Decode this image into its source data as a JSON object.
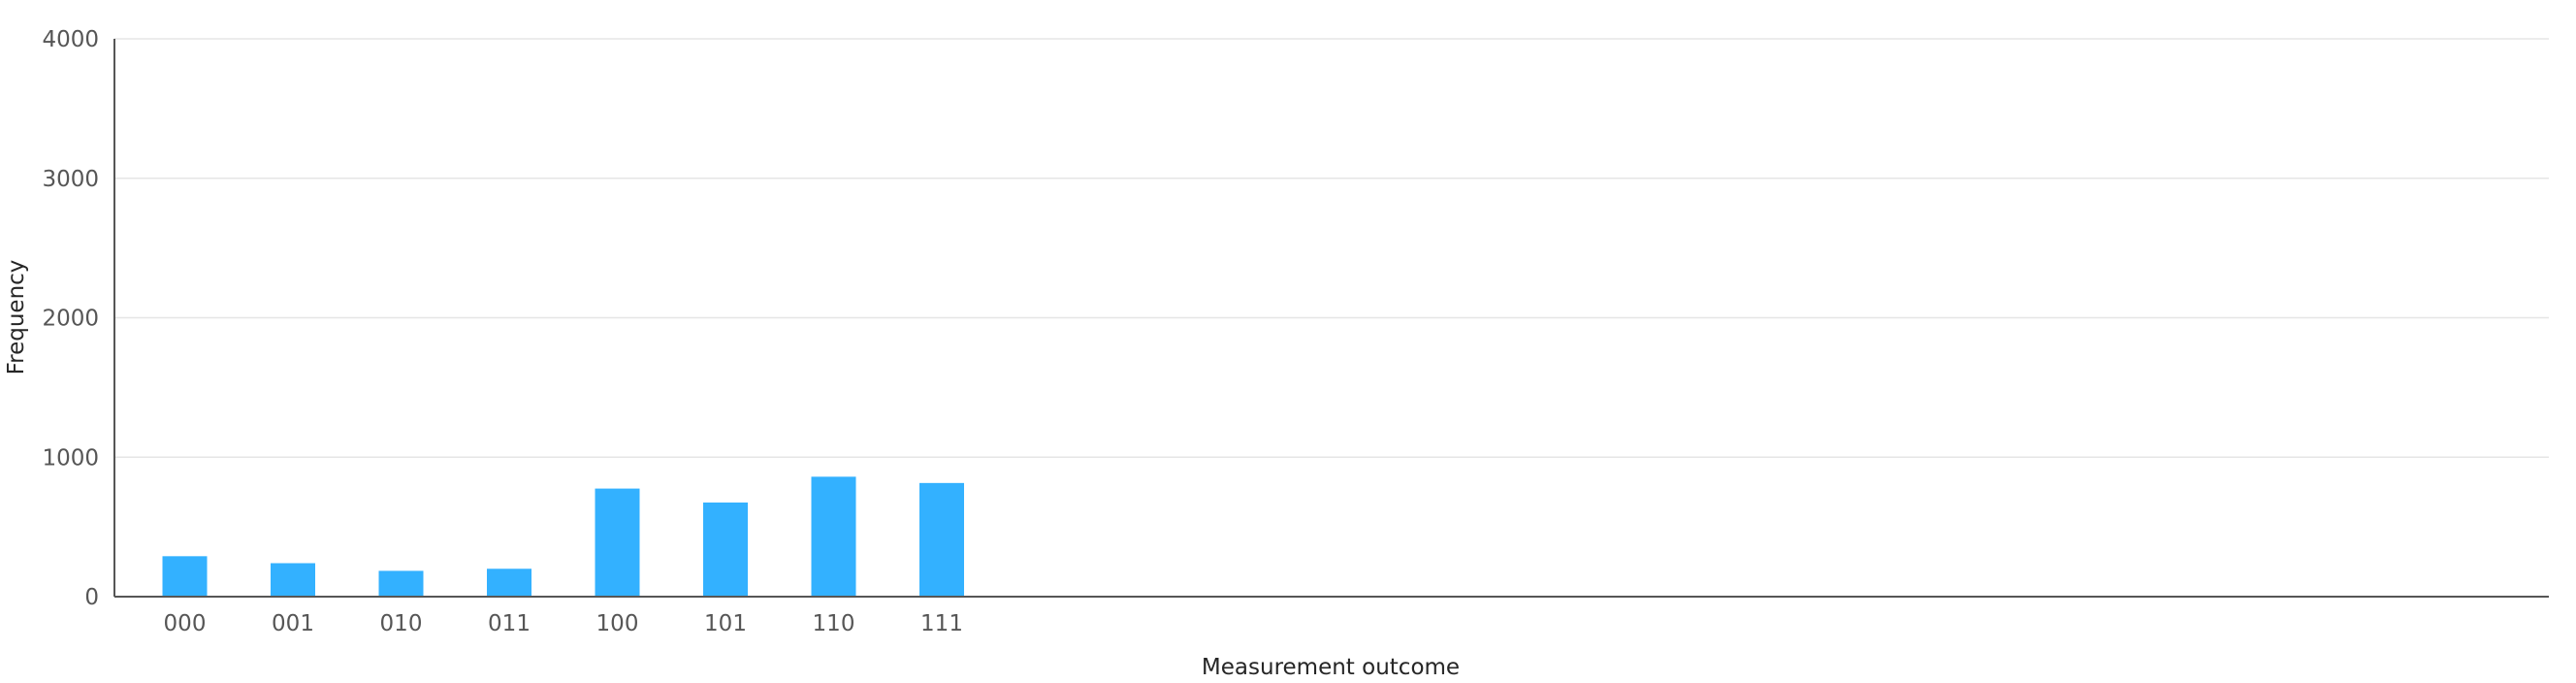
{
  "chart_data": {
    "type": "bar",
    "xlabel": "Measurement outcome",
    "ylabel": "Frequency",
    "categories": [
      "000",
      "001",
      "010",
      "011",
      "100",
      "101",
      "110",
      "111"
    ],
    "values": [
      290,
      240,
      185,
      200,
      775,
      675,
      860,
      815
    ],
    "ylim": [
      0,
      4000
    ],
    "yticks": [
      0,
      1000,
      2000,
      3000,
      4000
    ],
    "grid": true,
    "bar_color": "#33b1ff",
    "axis_color": "#565656",
    "grid_color": "#e6e6e6"
  }
}
